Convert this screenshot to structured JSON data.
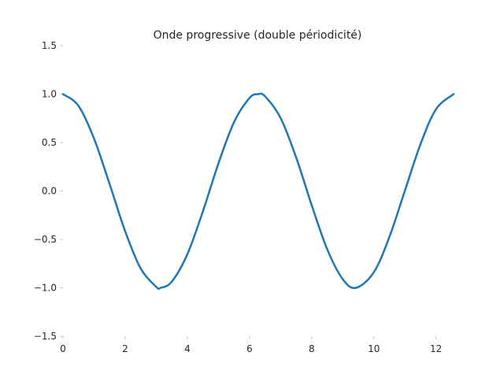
{
  "chart_data": {
    "type": "line",
    "title": "Onde progressive (double périodicité)",
    "xlabel": "",
    "ylabel": "",
    "xlim": [
      0,
      12.566
    ],
    "ylim": [
      -1.5,
      1.5
    ],
    "x_ticks": [
      0,
      2,
      4,
      6,
      8,
      10,
      12
    ],
    "x_tick_labels": [
      "0",
      "2",
      "4",
      "6",
      "8",
      "10",
      "12"
    ],
    "y_ticks": [
      1.5,
      1.0,
      0.5,
      0.0,
      -0.5,
      -1.0,
      -1.5
    ],
    "y_tick_labels": [
      "1.5",
      "1.0",
      "0.5",
      "0.0",
      "−0.5",
      "−1.0",
      "−1.5"
    ],
    "grid": false,
    "series": [
      {
        "color": "#1f77b4",
        "x": [
          0,
          0.5,
          1.0,
          1.5,
          2.0,
          2.5,
          3.0,
          3.1416,
          3.5,
          4.0,
          4.5,
          5.0,
          5.5,
          6.0,
          6.2832,
          6.5,
          7.0,
          7.5,
          8.0,
          8.5,
          9.0,
          9.4248,
          10.0,
          10.5,
          11.0,
          11.5,
          12.0,
          12.566
        ],
        "y": [
          1.0,
          0.878,
          0.54,
          0.071,
          -0.416,
          -0.801,
          -0.99,
          -1.0,
          -0.936,
          -0.654,
          -0.211,
          0.284,
          0.709,
          0.96,
          1.0,
          0.977,
          0.754,
          0.347,
          -0.146,
          -0.602,
          -0.911,
          -1.0,
          -0.839,
          -0.475,
          0.004,
          0.482,
          0.844,
          1.0
        ]
      }
    ]
  }
}
